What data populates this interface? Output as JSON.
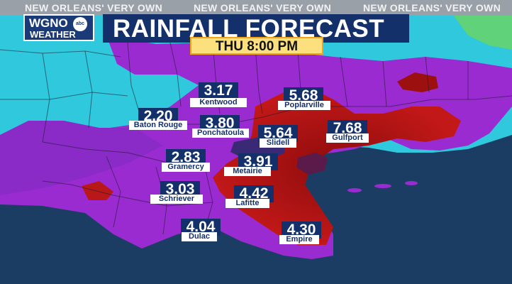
{
  "banner": {
    "left": "NEW ORLEANS' VERY OWN",
    "center": "NEW ORLEANS' VERY OWN",
    "right": "NEW ORLEANS' VERY OWN"
  },
  "logo": {
    "call_letters": "WGNO",
    "network": "abc",
    "sub": "WEATHER"
  },
  "title": "RAINFALL FORECAST",
  "time": "THU   8:00 PM",
  "colors": {
    "low_rain": "#2fc8dc",
    "mid_rain": "#9a2bd1",
    "high_rain": "#c21818",
    "water": "#1b3d63",
    "label_box": "#14306a",
    "time_box": "#fde07e"
  },
  "locations": [
    {
      "name": "Kentwood",
      "value": "3.17"
    },
    {
      "name": "Poplarville",
      "value": "5.68"
    },
    {
      "name": "Baton Rouge",
      "value": "2.20"
    },
    {
      "name": "Ponchatoula",
      "value": "3.80"
    },
    {
      "name": "Slidell",
      "value": "5.64"
    },
    {
      "name": "Gulfport",
      "value": "7.68"
    },
    {
      "name": "Gramercy",
      "value": "2.83"
    },
    {
      "name": "Metairie",
      "value": "3.91"
    },
    {
      "name": "Schriever",
      "value": "3.03"
    },
    {
      "name": "Lafitte",
      "value": "4.42"
    },
    {
      "name": "Dulac",
      "value": "4.04"
    },
    {
      "name": "Empire",
      "value": "4.30"
    }
  ]
}
